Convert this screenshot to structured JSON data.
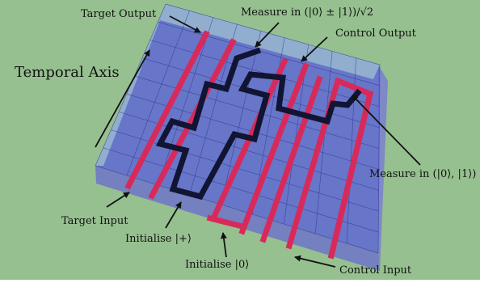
{
  "colors": {
    "background": "#96c08f",
    "cube_fill": "#5a62d8",
    "cube_top": "#9fc1d2",
    "grid_line": "#2d2f8a",
    "braid_red": "#d82a5a",
    "braid_black": "#111433",
    "arrow": "#111111"
  },
  "labels": {
    "temporal_axis": "Temporal Axis",
    "target_output": "Target Output",
    "measure_pm": "Measure in (|0⟩ ± |1⟩)/√2",
    "control_output": "Control Output",
    "measure_z": "Measure in (|0⟩, |1⟩)",
    "target_input": "Target Input",
    "initialise_plus": "Initialise |+⟩",
    "initialise_zero": "Initialise |0⟩",
    "control_input": "Control Input"
  }
}
